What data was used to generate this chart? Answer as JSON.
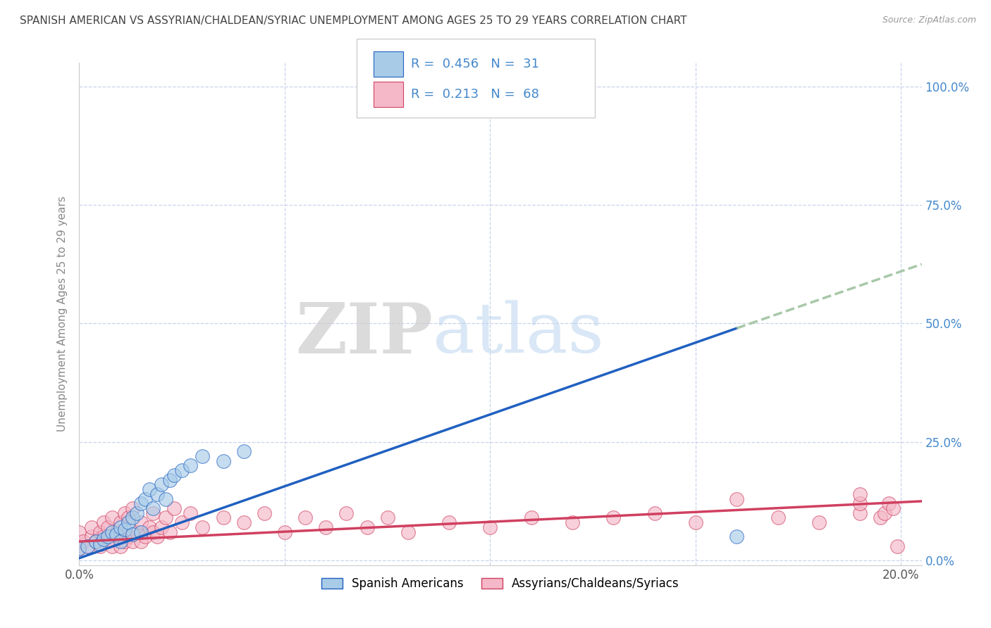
{
  "title": "SPANISH AMERICAN VS ASSYRIAN/CHALDEAN/SYRIAC UNEMPLOYMENT AMONG AGES 25 TO 29 YEARS CORRELATION CHART",
  "source": "Source: ZipAtlas.com",
  "ylabel": "Unemployment Among Ages 25 to 29 years",
  "xlim": [
    0.0,
    0.205
  ],
  "ylim": [
    -0.01,
    1.05
  ],
  "xticks": [
    0.0,
    0.05,
    0.1,
    0.15,
    0.2
  ],
  "xticklabels": [
    "0.0%",
    "",
    "",
    "",
    "20.0%"
  ],
  "yticks_right": [
    0.0,
    0.25,
    0.5,
    0.75,
    1.0
  ],
  "yticklabels_right": [
    "0.0%",
    "25.0%",
    "50.0%",
    "75.0%",
    "100.0%"
  ],
  "watermark_zip": "ZIP",
  "watermark_atlas": "atlas",
  "legend_r1": "R =  0.456",
  "legend_n1": "N =  31",
  "legend_r2": "R =  0.213",
  "legend_n2": "N =  68",
  "legend_label1": "Spanish Americans",
  "legend_label2": "Assyrians/Chaldeans/Syriacs",
  "color_blue": "#a8cce8",
  "color_pink": "#f4b8c8",
  "color_line_blue": "#2060c0",
  "color_line_pink": "#d04060",
  "color_text_blue": "#4488cc",
  "color_dashed": "#a8c8a8",
  "background_color": "#ffffff",
  "grid_color": "#c8d4e8",
  "blue_scatter_x": [
    0.0,
    0.002,
    0.004,
    0.005,
    0.006,
    0.007,
    0.008,
    0.009,
    0.01,
    0.01,
    0.011,
    0.012,
    0.013,
    0.013,
    0.014,
    0.015,
    0.015,
    0.016,
    0.017,
    0.018,
    0.019,
    0.02,
    0.021,
    0.022,
    0.023,
    0.025,
    0.027,
    0.03,
    0.035,
    0.04,
    0.16
  ],
  "blue_scatter_y": [
    0.025,
    0.03,
    0.04,
    0.035,
    0.045,
    0.05,
    0.06,
    0.055,
    0.07,
    0.04,
    0.065,
    0.08,
    0.09,
    0.055,
    0.1,
    0.12,
    0.06,
    0.13,
    0.15,
    0.11,
    0.14,
    0.16,
    0.13,
    0.17,
    0.18,
    0.19,
    0.2,
    0.22,
    0.21,
    0.23,
    0.05
  ],
  "pink_scatter_x": [
    0.0,
    0.0,
    0.001,
    0.002,
    0.003,
    0.003,
    0.004,
    0.005,
    0.005,
    0.006,
    0.006,
    0.007,
    0.007,
    0.008,
    0.008,
    0.009,
    0.01,
    0.01,
    0.01,
    0.011,
    0.011,
    0.012,
    0.012,
    0.013,
    0.013,
    0.014,
    0.015,
    0.015,
    0.016,
    0.017,
    0.018,
    0.018,
    0.019,
    0.02,
    0.021,
    0.022,
    0.023,
    0.025,
    0.027,
    0.03,
    0.035,
    0.04,
    0.045,
    0.05,
    0.055,
    0.06,
    0.065,
    0.07,
    0.075,
    0.08,
    0.09,
    0.1,
    0.11,
    0.12,
    0.13,
    0.14,
    0.15,
    0.16,
    0.17,
    0.18,
    0.19,
    0.19,
    0.19,
    0.195,
    0.196,
    0.197,
    0.198,
    0.199
  ],
  "pink_scatter_y": [
    0.025,
    0.06,
    0.04,
    0.03,
    0.05,
    0.07,
    0.04,
    0.03,
    0.06,
    0.05,
    0.08,
    0.04,
    0.07,
    0.03,
    0.09,
    0.06,
    0.03,
    0.05,
    0.08,
    0.04,
    0.1,
    0.05,
    0.09,
    0.04,
    0.11,
    0.06,
    0.04,
    0.08,
    0.05,
    0.07,
    0.06,
    0.1,
    0.05,
    0.07,
    0.09,
    0.06,
    0.11,
    0.08,
    0.1,
    0.07,
    0.09,
    0.08,
    0.1,
    0.06,
    0.09,
    0.07,
    0.1,
    0.07,
    0.09,
    0.06,
    0.08,
    0.07,
    0.09,
    0.08,
    0.09,
    0.1,
    0.08,
    0.13,
    0.09,
    0.08,
    0.1,
    0.12,
    0.14,
    0.09,
    0.1,
    0.12,
    0.11,
    0.03
  ],
  "blue_trend_x0": 0.0,
  "blue_trend_y0": 0.005,
  "blue_trend_x1": 0.16,
  "blue_trend_y1": 0.49,
  "blue_trend_dash_x1": 0.205,
  "blue_trend_dash_y1": 0.625,
  "pink_trend_x0": 0.0,
  "pink_trend_y0": 0.04,
  "pink_trend_x1": 0.205,
  "pink_trend_y1": 0.125
}
